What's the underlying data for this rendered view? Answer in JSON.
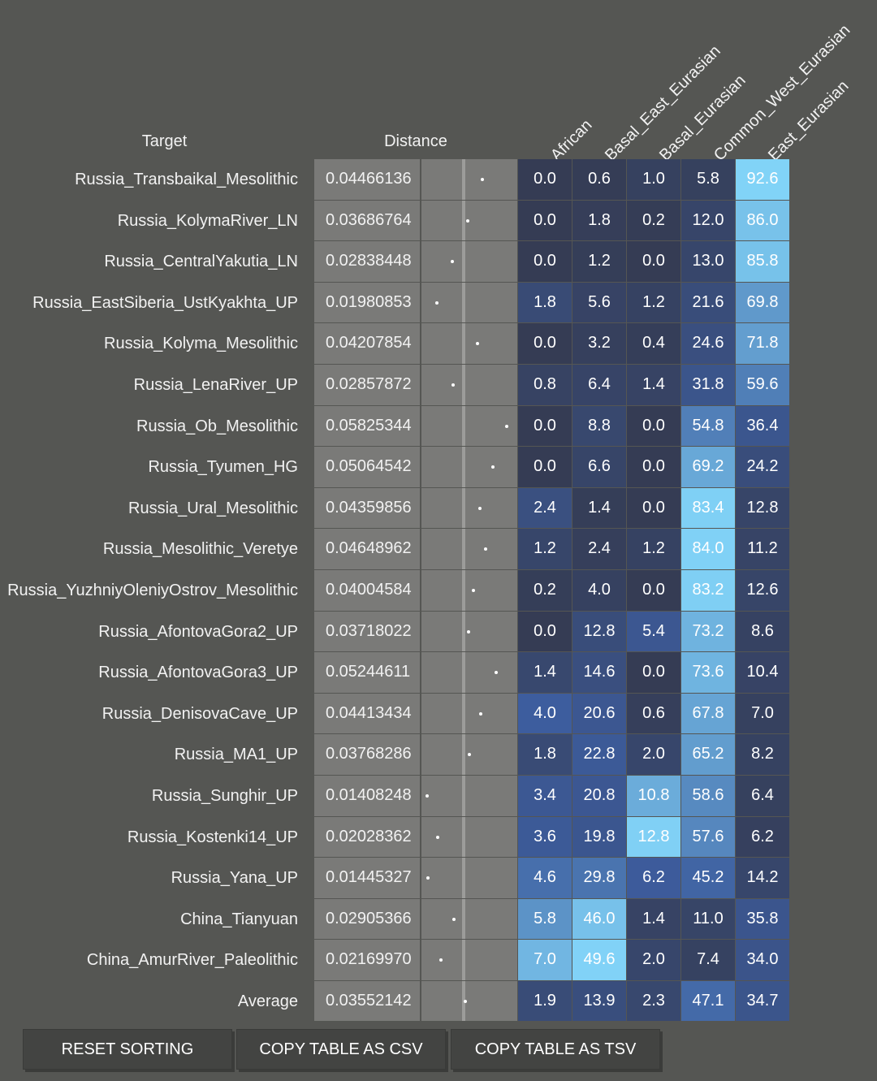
{
  "headers": {
    "target": "Target",
    "distance": "Distance",
    "columns": [
      "African",
      "Basal_East_Eurasian",
      "Basal_Eurasian",
      "Common_West_Eurasian",
      "East_Eurasian"
    ]
  },
  "rows": [
    {
      "target": "Russia_Transbaikal_Mesolithic",
      "distance": "0.04466136",
      "values": [
        "0.0",
        "0.6",
        "1.0",
        "5.8",
        "92.6"
      ]
    },
    {
      "target": "Russia_KolymaRiver_LN",
      "distance": "0.03686764",
      "values": [
        "0.0",
        "1.8",
        "0.2",
        "12.0",
        "86.0"
      ]
    },
    {
      "target": "Russia_CentralYakutia_LN",
      "distance": "0.02838448",
      "values": [
        "0.0",
        "1.2",
        "0.0",
        "13.0",
        "85.8"
      ]
    },
    {
      "target": "Russia_EastSiberia_UstKyakhta_UP",
      "distance": "0.01980853",
      "values": [
        "1.8",
        "5.6",
        "1.2",
        "21.6",
        "69.8"
      ]
    },
    {
      "target": "Russia_Kolyma_Mesolithic",
      "distance": "0.04207854",
      "values": [
        "0.0",
        "3.2",
        "0.4",
        "24.6",
        "71.8"
      ]
    },
    {
      "target": "Russia_LenaRiver_UP",
      "distance": "0.02857872",
      "values": [
        "0.8",
        "6.4",
        "1.4",
        "31.8",
        "59.6"
      ]
    },
    {
      "target": "Russia_Ob_Mesolithic",
      "distance": "0.05825344",
      "values": [
        "0.0",
        "8.8",
        "0.0",
        "54.8",
        "36.4"
      ]
    },
    {
      "target": "Russia_Tyumen_HG",
      "distance": "0.05064542",
      "values": [
        "0.0",
        "6.6",
        "0.0",
        "69.2",
        "24.2"
      ]
    },
    {
      "target": "Russia_Ural_Mesolithic",
      "distance": "0.04359856",
      "values": [
        "2.4",
        "1.4",
        "0.0",
        "83.4",
        "12.8"
      ]
    },
    {
      "target": "Russia_Mesolithic_Veretye",
      "distance": "0.04648962",
      "values": [
        "1.2",
        "2.4",
        "1.2",
        "84.0",
        "11.2"
      ]
    },
    {
      "target": "Russia_YuzhniyOleniyOstrov_Mesolithic",
      "distance": "0.04004584",
      "values": [
        "0.2",
        "4.0",
        "0.0",
        "83.2",
        "12.6"
      ]
    },
    {
      "target": "Russia_AfontovaGora2_UP",
      "distance": "0.03718022",
      "values": [
        "0.0",
        "12.8",
        "5.4",
        "73.2",
        "8.6"
      ]
    },
    {
      "target": "Russia_AfontovaGora3_UP",
      "distance": "0.05244611",
      "values": [
        "1.4",
        "14.6",
        "0.0",
        "73.6",
        "10.4"
      ]
    },
    {
      "target": "Russia_DenisovaCave_UP",
      "distance": "0.04413434",
      "values": [
        "4.0",
        "20.6",
        "0.6",
        "67.8",
        "7.0"
      ]
    },
    {
      "target": "Russia_MA1_UP",
      "distance": "0.03768286",
      "values": [
        "1.8",
        "22.8",
        "2.0",
        "65.2",
        "8.2"
      ]
    },
    {
      "target": "Russia_Sunghir_UP",
      "distance": "0.01408248",
      "values": [
        "3.4",
        "20.8",
        "10.8",
        "58.6",
        "6.4"
      ]
    },
    {
      "target": "Russia_Kostenki14_UP",
      "distance": "0.02028362",
      "values": [
        "3.6",
        "19.8",
        "12.8",
        "57.6",
        "6.2"
      ]
    },
    {
      "target": "Russia_Yana_UP",
      "distance": "0.01445327",
      "values": [
        "4.6",
        "29.8",
        "6.2",
        "45.2",
        "14.2"
      ]
    },
    {
      "target": "China_Tianyuan",
      "distance": "0.02905366",
      "values": [
        "5.8",
        "46.0",
        "1.4",
        "11.0",
        "35.8"
      ]
    },
    {
      "target": "China_AmurRiver_Paleolithic",
      "distance": "0.02169970",
      "values": [
        "7.0",
        "49.6",
        "2.0",
        "7.4",
        "34.0"
      ]
    },
    {
      "target": "Average",
      "distance": "0.03552142",
      "values": [
        "1.9",
        "13.9",
        "2.3",
        "47.1",
        "34.7"
      ]
    }
  ],
  "buttons": {
    "reset": "RESET SORTING",
    "csv": "COPY TABLE AS CSV",
    "tsv": "COPY TABLE AS TSV"
  },
  "colors": {
    "background": "#555653",
    "distance_cell": "#7a7a78",
    "heat_low": "#353c54",
    "heat_mid": "#3d5d9e",
    "heat_high": "#82d4f8"
  }
}
